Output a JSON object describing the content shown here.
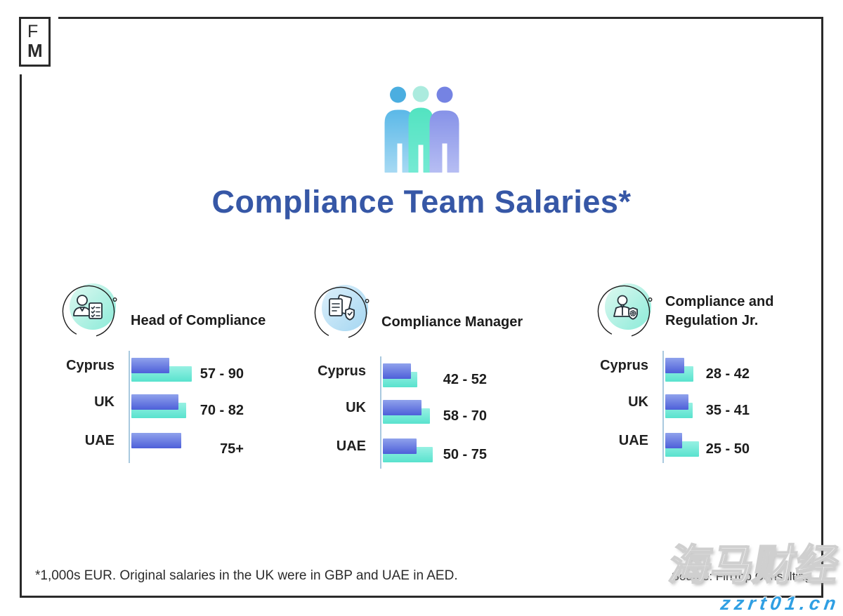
{
  "logo": {
    "line1": "F",
    "line2": "M"
  },
  "header": {
    "title": "Compliance Team Salaries*",
    "icon": "team-people-icon"
  },
  "colors": {
    "title_blue": "#3657a6",
    "bar_blue_top": "#8fa2ec",
    "bar_blue_bottom": "#4d5fd9",
    "bar_teal_top": "#97f1e3",
    "bar_teal_bottom": "#59e2ce",
    "axis": "#a9c9df",
    "icon_mint_light": "#dff8f1",
    "icon_mint_dark": "#92eddc",
    "icon_blue_light": "#ddf0fb",
    "icon_blue_dark": "#abd9f3",
    "frame": "#2a2a2a",
    "watermark_url_blue": "#2f9fe3"
  },
  "icons": {
    "hero": "team-people-icon",
    "sections": [
      "person-checklist-icon",
      "documents-shield-icon",
      "person-shield-gear-icon"
    ]
  },
  "chart_data": [
    {
      "type": "bar",
      "orientation": "horizontal",
      "title": "Head of Compliance",
      "unit": "1,000s EUR",
      "categories": [
        "Cyprus",
        "UK",
        "UAE"
      ],
      "series": [
        {
          "name": "range-low (blue)",
          "values": [
            57,
            70,
            75
          ]
        },
        {
          "name": "range-high (teal)",
          "values": [
            90,
            82,
            null
          ]
        }
      ],
      "value_labels": [
        "57 - 90",
        "70 - 82",
        "75+"
      ],
      "legend": "none",
      "grid": "off"
    },
    {
      "type": "bar",
      "orientation": "horizontal",
      "title": "Compliance Manager",
      "unit": "1,000s EUR",
      "categories": [
        "Cyprus",
        "UK",
        "UAE"
      ],
      "series": [
        {
          "name": "range-low (blue)",
          "values": [
            42,
            58,
            50
          ]
        },
        {
          "name": "range-high (teal)",
          "values": [
            52,
            70,
            75
          ]
        }
      ],
      "value_labels": [
        "42 - 52",
        "58 - 70",
        "50 - 75"
      ],
      "legend": "none",
      "grid": "off"
    },
    {
      "type": "bar",
      "orientation": "horizontal",
      "title": "Compliance and Regulation Jr.",
      "unit": "1,000s EUR",
      "categories": [
        "Cyprus",
        "UK",
        "UAE"
      ],
      "series": [
        {
          "name": "range-low (blue)",
          "values": [
            28,
            35,
            25
          ]
        },
        {
          "name": "range-high (teal)",
          "values": [
            42,
            41,
            50
          ]
        }
      ],
      "value_labels": [
        "28 - 42",
        "35 - 41",
        "25 - 50"
      ],
      "legend": "none",
      "grid": "off"
    }
  ],
  "footer": {
    "footnote": "*1,000s EUR. Original salaries in the UK were in GBP and UAE in AED.",
    "source": "Source: FinTop Consulting"
  },
  "watermark": {
    "text": "海马财经",
    "url": "zzrt01.cn"
  }
}
